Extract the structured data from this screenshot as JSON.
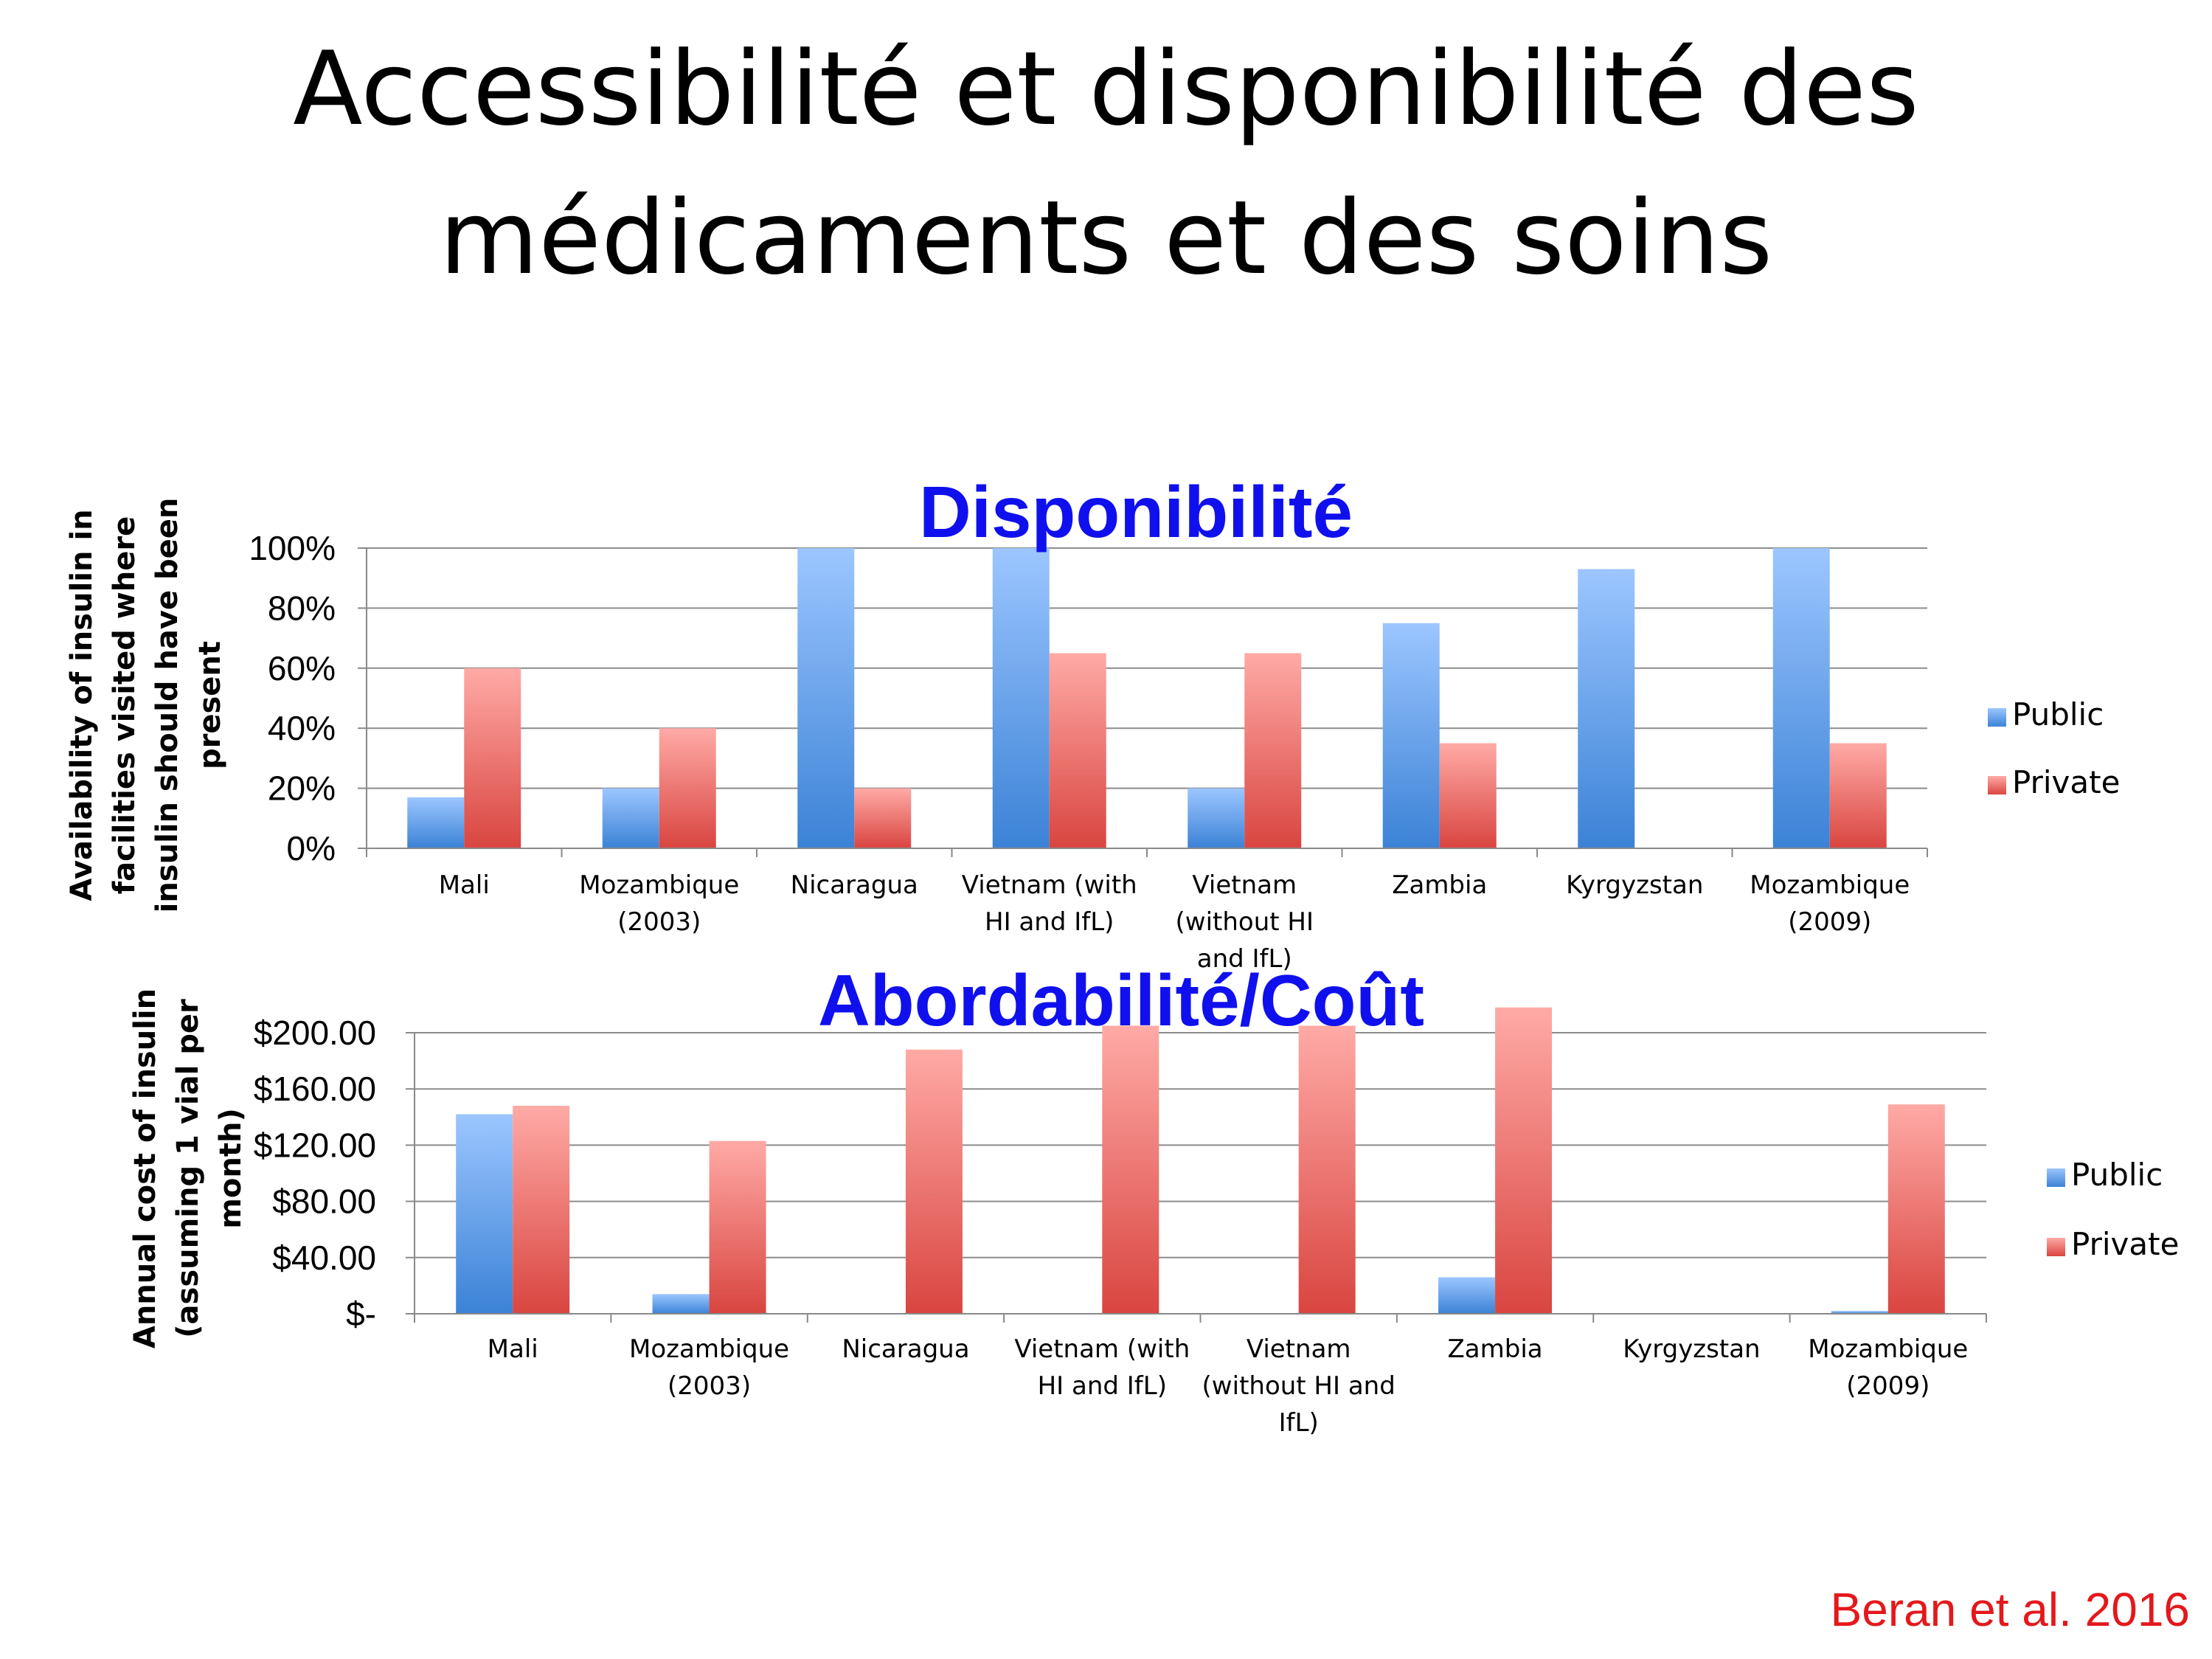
{
  "slide": {
    "title_line1": "Accessibilité et disponibilité des",
    "title_line2": "médicaments et des soins",
    "source": "Beran et al. 2016",
    "source_color": "#e4181b",
    "chart_title_color": "#1010ee"
  },
  "colors": {
    "public_light": "#9cc6ff",
    "public_dark": "#3b82d6",
    "private_light": "#ffaaa6",
    "private_dark": "#d94540",
    "axis": "#898989",
    "grid": "#8c8c8c"
  },
  "chart_data": [
    {
      "type": "bar",
      "title": "Disponibilité",
      "ylabel": "Availability of insulin in facilities visited where insulin should have been present",
      "ylabel_lines": [
        "Availability of insulin in",
        "facilities visited where",
        "insulin should have been",
        "present"
      ],
      "categories": [
        "Mali",
        "Mozambique (2003)",
        "Nicaragua",
        "Vietnam (with HI and IfL)",
        "Vietnam (without HI and IfL)",
        "Zambia",
        "Kyrgyzstan",
        "Mozambique (2009)"
      ],
      "category_lines": [
        [
          "Mali"
        ],
        [
          "Mozambique",
          "(2003)"
        ],
        [
          "Nicaragua"
        ],
        [
          "Vietnam (with",
          "HI and IfL)"
        ],
        [
          "Vietnam",
          "(without HI",
          "and IfL)"
        ],
        [
          "Zambia"
        ],
        [
          "Kyrgyzstan"
        ],
        [
          "Mozambique",
          "(2009)"
        ]
      ],
      "series": [
        {
          "name": "Public",
          "values": [
            17,
            20,
            100,
            100,
            20,
            75,
            93,
            100
          ]
        },
        {
          "name": "Private",
          "values": [
            60,
            40,
            20,
            65,
            65,
            35,
            0,
            35
          ]
        }
      ],
      "ylim": [
        0,
        100
      ],
      "yticks": [
        0,
        20,
        40,
        60,
        80,
        100
      ],
      "ytick_labels": [
        "0%",
        "20%",
        "40%",
        "60%",
        "80%",
        "100%"
      ],
      "grid": true,
      "legend": "right"
    },
    {
      "type": "bar",
      "title": "Abordabilité/Coût",
      "ylabel": "Annual cost of insulin (assuming 1 vial per month)",
      "ylabel_lines": [
        "Annual cost of insulin",
        "(assuming 1 vial per",
        "month)"
      ],
      "categories": [
        "Mali",
        "Mozambique (2003)",
        "Nicaragua",
        "Vietnam (with HI and IfL)",
        "Vietnam (without HI and IfL)",
        "Zambia",
        "Kyrgyzstan",
        "Mozambique (2009)"
      ],
      "category_lines": [
        [
          "Mali"
        ],
        [
          "Mozambique",
          "(2003)"
        ],
        [
          "Nicaragua"
        ],
        [
          "Vietnam (with",
          "HI and IfL)"
        ],
        [
          "Vietnam",
          "(without HI and",
          "IfL)"
        ],
        [
          "Zambia"
        ],
        [
          "Kyrgyzstan"
        ],
        [
          "Mozambique",
          "(2009)"
        ]
      ],
      "series": [
        {
          "name": "Public",
          "values": [
            142,
            14,
            0,
            0,
            0,
            26,
            0,
            2
          ]
        },
        {
          "name": "Private",
          "values": [
            148,
            123,
            188,
            205,
            205,
            218,
            0,
            149
          ]
        }
      ],
      "ylim": [
        0,
        200
      ],
      "yticks": [
        0,
        40,
        80,
        120,
        160,
        200
      ],
      "ytick_labels": [
        "$-",
        "$40.00",
        "$80.00",
        "$120.00",
        "$160.00",
        "$200.00"
      ],
      "grid": true,
      "legend": "right"
    }
  ]
}
